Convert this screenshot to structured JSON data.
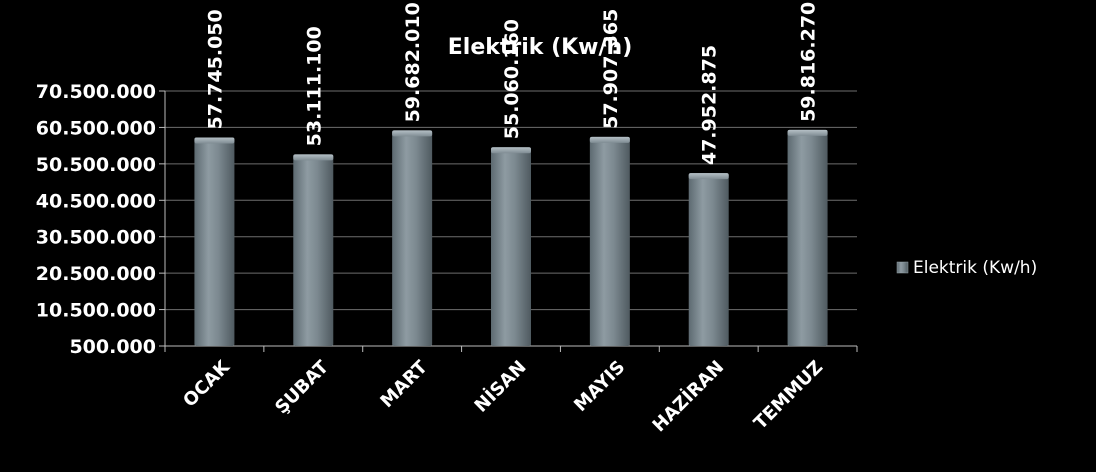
{
  "chart_data": {
    "type": "bar",
    "title": "Elektrik (Kw/h)",
    "categories": [
      "OCAK",
      "ŞUBAT",
      "MART",
      "NİSAN",
      "MAYIS",
      "HAZİRAN",
      "TEMMUZ"
    ],
    "series": [
      {
        "name": "Elektrik (Kw/h)",
        "values": [
          57745050,
          53111100,
          59682010,
          55060160,
          57907365,
          47952875,
          59816270
        ],
        "labels": [
          "57.745.050",
          "53.111.100",
          "59.682.010",
          "55.060.160",
          "57.907.365",
          "47.952.875",
          "59.816.270"
        ]
      }
    ],
    "ylim": [
      500000,
      70500000
    ],
    "yticks": [
      500000,
      10500000,
      20500000,
      30500000,
      40500000,
      50500000,
      60500000,
      70500000
    ],
    "ytick_labels": [
      "500.000",
      "10.500.000",
      "20.500.000",
      "30.500.000",
      "40.500.000",
      "50.500.000",
      "60.500.000",
      "70.500.000"
    ],
    "grid": true,
    "legend_position": "right",
    "colors": {
      "background": "#000000",
      "bar": "#7f8c93",
      "grid": "#6e6e6e",
      "text": "#ffffff"
    }
  }
}
